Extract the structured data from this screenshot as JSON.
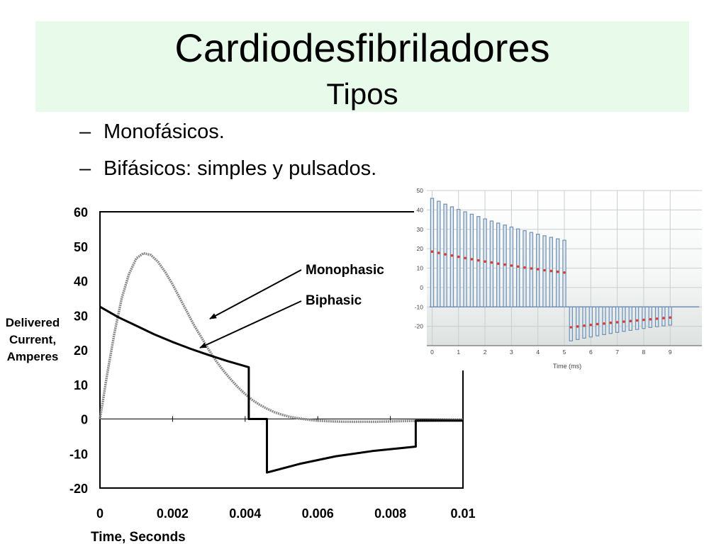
{
  "slide": {
    "title": "Cardiodesfibriladores",
    "subtitle": "Tipos",
    "bullets": [
      {
        "dash": "–",
        "text": "Monofásicos."
      },
      {
        "dash": "–",
        "text": "Bifásicos: simples y pulsados."
      }
    ]
  },
  "chart_data": [
    {
      "type": "line",
      "xlabel": "Time, Seconds",
      "ylabel": "Delivered Current, Amperes",
      "ylabel_lines": [
        "Delivered",
        "Current,",
        "Amperes"
      ],
      "xlim": [
        0,
        0.01
      ],
      "ylim": [
        -20,
        60
      ],
      "xticks": [
        0,
        0.002,
        0.004,
        0.006,
        0.008,
        0.01
      ],
      "xtick_labels": [
        "0",
        "0.002",
        "0.004",
        "0.006",
        "0.008",
        "0.01"
      ],
      "yticks": [
        60,
        50,
        40,
        30,
        20,
        10,
        0,
        -10,
        -20
      ],
      "ytick_labels": [
        "60",
        "50",
        "40",
        "30",
        "20",
        "10",
        "0",
        "-10",
        "-20"
      ],
      "annotations": [
        "Monophasic",
        "Biphasic"
      ],
      "series": [
        {
          "name": "Monophasic",
          "color": "#8a8a8a",
          "x": [
            0,
            0.0002,
            0.0004,
            0.0006,
            0.0008,
            0.001,
            0.0012,
            0.0014,
            0.0016,
            0.0018,
            0.002,
            0.0022,
            0.0024,
            0.0026,
            0.0028,
            0.003,
            0.0032,
            0.0034,
            0.0036,
            0.0038,
            0.004,
            0.0042,
            0.0044,
            0.0046,
            0.0048,
            0.005,
            0.0052,
            0.0054,
            0.0056,
            0.0058,
            0.006,
            0.0064,
            0.0068,
            0.0072,
            0.0076,
            0.008,
            0.0084,
            0.0088,
            0.0092,
            0.0096,
            0.01
          ],
          "y": [
            0,
            13,
            25,
            35,
            42,
            46.5,
            48,
            47.5,
            45.5,
            42.5,
            39,
            35,
            31,
            27,
            23.5,
            20,
            16.8,
            14,
            11.5,
            9.2,
            7.2,
            5.5,
            4.1,
            3,
            2,
            1.3,
            0.7,
            0.3,
            0,
            -0.3,
            -0.5,
            -0.7,
            -0.8,
            -0.8,
            -0.8,
            -0.7,
            -0.6,
            -0.5,
            -0.4,
            -0.3,
            -0.2
          ]
        },
        {
          "name": "Biphasic",
          "color": "#000000",
          "x": [
            0,
            0.0005,
            0.001,
            0.0015,
            0.002,
            0.0025,
            0.003,
            0.0035,
            0.0041,
            0.0041,
            0.0042,
            0.0046,
            0.0046,
            0.0055,
            0.0065,
            0.0075,
            0.0087,
            0.0087,
            0.01
          ],
          "y": [
            32.5,
            29.5,
            27,
            24.5,
            22.3,
            20.3,
            18.5,
            16.8,
            15,
            0,
            0,
            0,
            -15.5,
            -13,
            -10.8,
            -9.3,
            -8,
            -0.5,
            -0.5
          ]
        }
      ]
    },
    {
      "type": "bar",
      "xlabel": "Time (ms)",
      "xlim": [
        -0.2,
        10.2
      ],
      "ylim": [
        -30,
        50
      ],
      "xticks": [
        0,
        1,
        2,
        3,
        4,
        5,
        6,
        7,
        8,
        9
      ],
      "xtick_labels": [
        "0",
        "1",
        "2",
        "3",
        "4",
        "5",
        "6",
        "7",
        "8",
        "9"
      ],
      "yticks": [
        50,
        40,
        30,
        20,
        10,
        0,
        -10,
        -20
      ],
      "ytick_labels": [
        "50",
        "40",
        "30",
        "20",
        "10",
        "0",
        "-10",
        "-20"
      ],
      "baseline": -10,
      "pulse_color": "#6f8fb3",
      "average_color": "#e53a2a",
      "pulses": [
        {
          "t": 0.0,
          "v": 46.0
        },
        {
          "t": 0.25,
          "v": 44.5
        },
        {
          "t": 0.5,
          "v": 43.0
        },
        {
          "t": 0.75,
          "v": 41.6
        },
        {
          "t": 1.0,
          "v": 40.3
        },
        {
          "t": 1.25,
          "v": 39.0
        },
        {
          "t": 1.5,
          "v": 37.8
        },
        {
          "t": 1.75,
          "v": 36.6
        },
        {
          "t": 2.0,
          "v": 35.4
        },
        {
          "t": 2.25,
          "v": 34.3
        },
        {
          "t": 2.5,
          "v": 33.2
        },
        {
          "t": 2.75,
          "v": 32.2
        },
        {
          "t": 3.0,
          "v": 31.2
        },
        {
          "t": 3.25,
          "v": 30.2
        },
        {
          "t": 3.5,
          "v": 29.3
        },
        {
          "t": 3.75,
          "v": 28.4
        },
        {
          "t": 4.0,
          "v": 27.5
        },
        {
          "t": 4.25,
          "v": 26.7
        },
        {
          "t": 4.5,
          "v": 25.9
        },
        {
          "t": 4.75,
          "v": 25.1
        },
        {
          "t": 5.0,
          "v": 24.4
        },
        {
          "t": 5.25,
          "v": -27.5
        },
        {
          "t": 5.5,
          "v": -26.8
        },
        {
          "t": 5.75,
          "v": -26.1
        },
        {
          "t": 6.0,
          "v": -25.5
        },
        {
          "t": 6.25,
          "v": -24.9
        },
        {
          "t": 6.5,
          "v": -24.3
        },
        {
          "t": 6.75,
          "v": -23.7
        },
        {
          "t": 7.0,
          "v": -23.1
        },
        {
          "t": 7.25,
          "v": -22.6
        },
        {
          "t": 7.5,
          "v": -22.1
        },
        {
          "t": 7.75,
          "v": -21.6
        },
        {
          "t": 8.0,
          "v": -21.1
        },
        {
          "t": 8.25,
          "v": -20.6
        },
        {
          "t": 8.5,
          "v": -20.2
        },
        {
          "t": 8.75,
          "v": -19.8
        },
        {
          "t": 9.0,
          "v": -19.4
        }
      ],
      "average_points": [
        {
          "t": 0.0,
          "v": 18.5
        },
        {
          "t": 0.25,
          "v": 17.8
        },
        {
          "t": 0.5,
          "v": 17.1
        },
        {
          "t": 0.75,
          "v": 16.5
        },
        {
          "t": 1.0,
          "v": 15.8
        },
        {
          "t": 1.25,
          "v": 15.2
        },
        {
          "t": 1.5,
          "v": 14.6
        },
        {
          "t": 1.75,
          "v": 14.0
        },
        {
          "t": 2.0,
          "v": 13.4
        },
        {
          "t": 2.25,
          "v": 12.9
        },
        {
          "t": 2.5,
          "v": 12.3
        },
        {
          "t": 2.75,
          "v": 11.8
        },
        {
          "t": 3.0,
          "v": 11.3
        },
        {
          "t": 3.25,
          "v": 10.8
        },
        {
          "t": 3.5,
          "v": 10.3
        },
        {
          "t": 3.75,
          "v": 9.8
        },
        {
          "t": 4.0,
          "v": 9.4
        },
        {
          "t": 4.25,
          "v": 8.9
        },
        {
          "t": 4.5,
          "v": 8.5
        },
        {
          "t": 4.75,
          "v": 8.1
        },
        {
          "t": 5.0,
          "v": 7.7
        },
        {
          "t": 5.25,
          "v": -20.5
        },
        {
          "t": 5.5,
          "v": -20.1
        },
        {
          "t": 5.75,
          "v": -19.7
        },
        {
          "t": 6.0,
          "v": -19.3
        },
        {
          "t": 6.25,
          "v": -18.9
        },
        {
          "t": 6.5,
          "v": -18.6
        },
        {
          "t": 6.75,
          "v": -18.2
        },
        {
          "t": 7.0,
          "v": -17.9
        },
        {
          "t": 7.25,
          "v": -17.6
        },
        {
          "t": 7.5,
          "v": -17.3
        },
        {
          "t": 7.75,
          "v": -17.0
        },
        {
          "t": 8.0,
          "v": -16.7
        },
        {
          "t": 8.25,
          "v": -16.4
        },
        {
          "t": 8.5,
          "v": -16.1
        },
        {
          "t": 8.75,
          "v": -15.8
        },
        {
          "t": 9.0,
          "v": -15.5
        }
      ]
    }
  ]
}
